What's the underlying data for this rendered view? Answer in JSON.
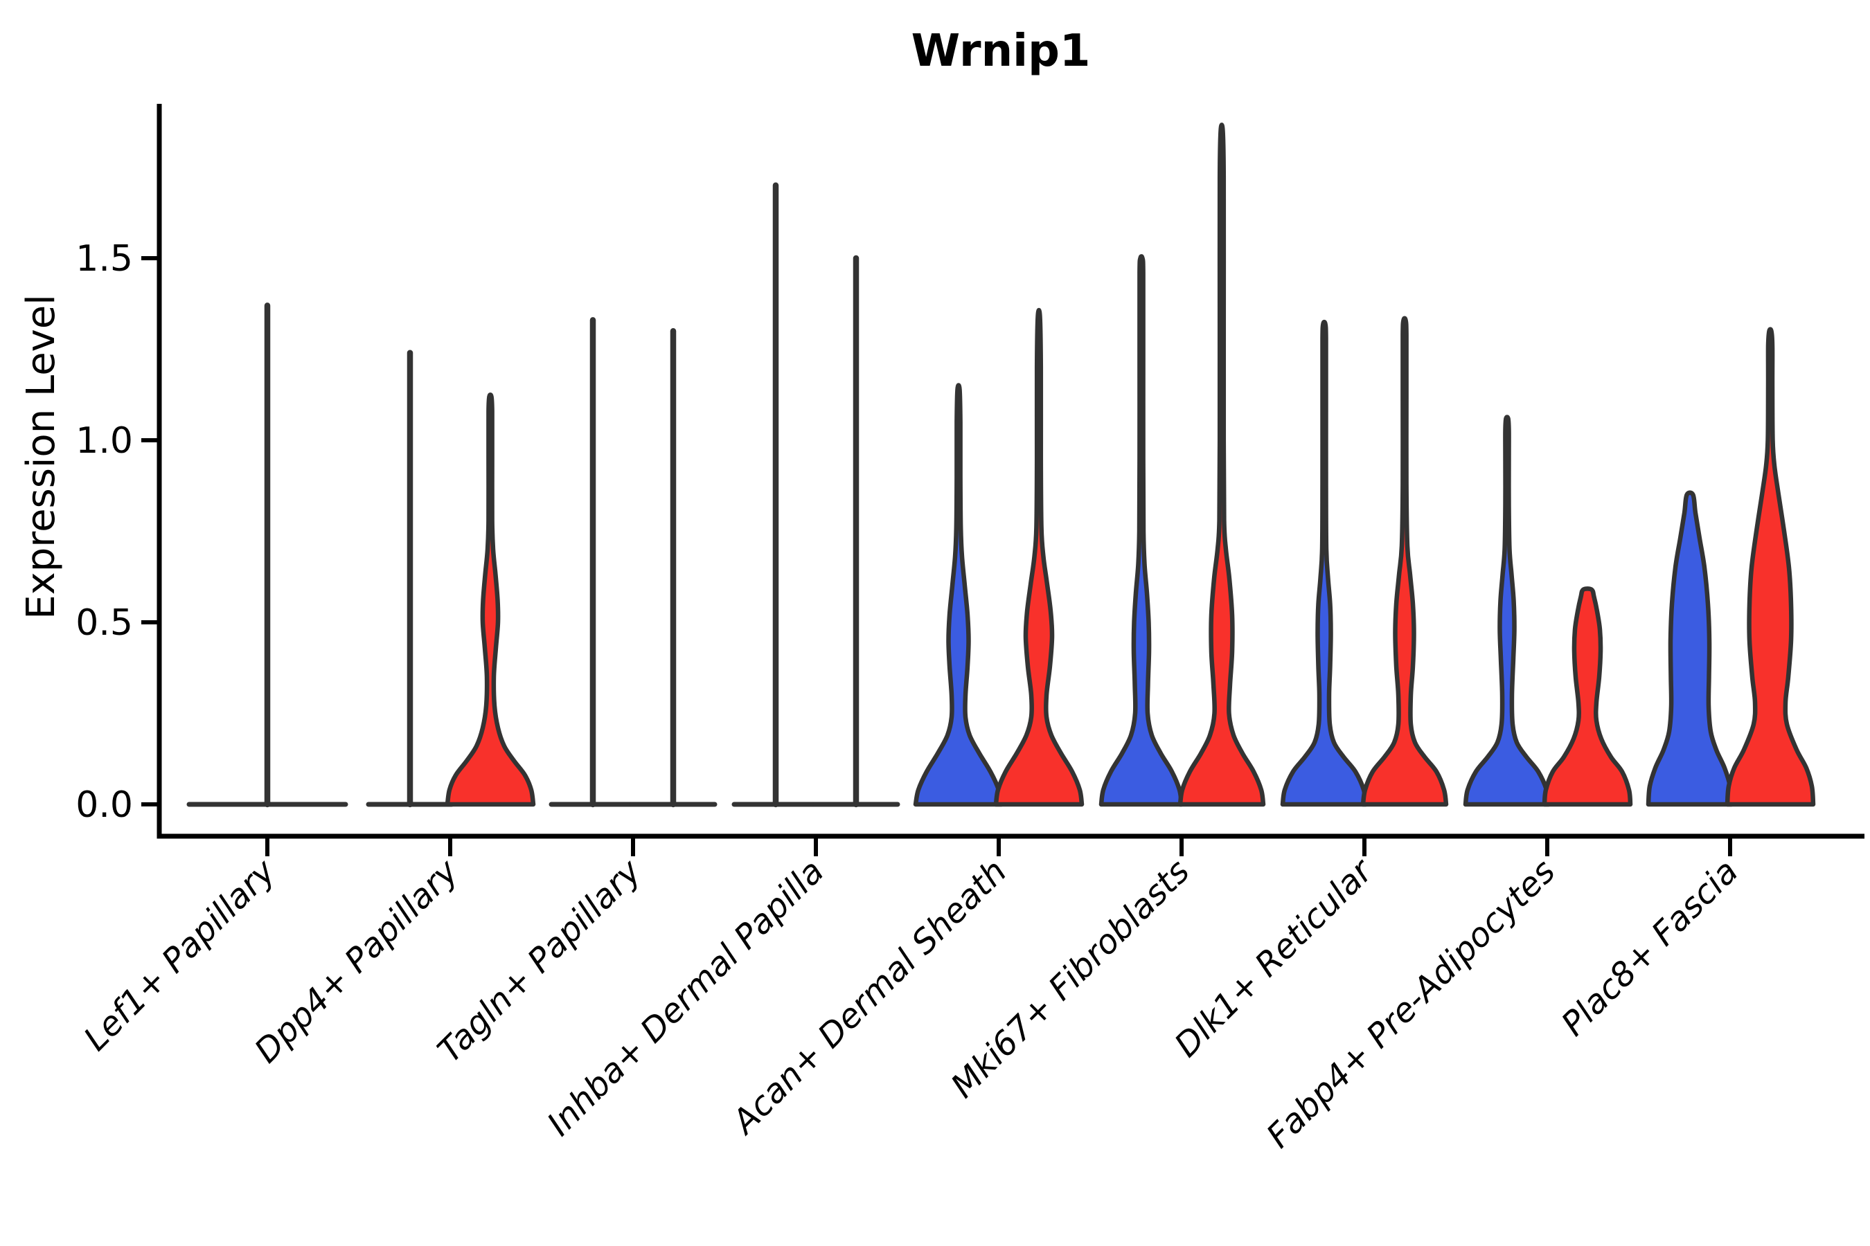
{
  "chart_data": {
    "type": "violin",
    "title": "Wrnip1",
    "ylabel": "Expression Level",
    "xlabel": "",
    "yticks": [
      0.0,
      0.5,
      1.0,
      1.5
    ],
    "ylim": [
      -0.09,
      1.93
    ],
    "grid": false,
    "legend_position": "none",
    "split_colors": {
      "blue": "#3B5CE1",
      "red": "#F8312B"
    },
    "outline_color": "#333333",
    "axis_color": "#000000",
    "categories": [
      "Lef1+ Papillary",
      "Dpp4+ Papillary",
      "Tagln+ Papillary",
      "Inhba+ Dermal Papilla",
      "Acan+ Dermal Sheath",
      "Mki67+ Fibroblasts",
      "Dlk1+ Reticular",
      "Fabp4+ Pre-Adipocytes",
      "Plac8+ Fascia"
    ],
    "groups": [
      {
        "category": "Lef1+ Papillary",
        "violins": [
          {
            "split": "single",
            "shape": "flat",
            "max": 1.37,
            "color": null,
            "base_halfwidth": 113
          }
        ]
      },
      {
        "category": "Dpp4+ Papillary",
        "violins": [
          {
            "split": "blue",
            "shape": "flat",
            "max": 1.24,
            "color": "#3B5CE1",
            "base_halfwidth": 60
          },
          {
            "split": "red",
            "shape": "body",
            "max": 1.12,
            "color": "#F8312B",
            "profile": [
              [
                0,
                62
              ],
              [
                0.04,
                59
              ],
              [
                0.08,
                50
              ],
              [
                0.12,
                34
              ],
              [
                0.16,
                20
              ],
              [
                0.21,
                11
              ],
              [
                0.27,
                6
              ],
              [
                0.35,
                5
              ],
              [
                0.43,
                8
              ],
              [
                0.5,
                11
              ],
              [
                0.56,
                10.5
              ],
              [
                0.63,
                7.5
              ],
              [
                0.7,
                4
              ],
              [
                0.78,
                2.6
              ],
              [
                0.95,
                2.6
              ],
              [
                1.08,
                2.6
              ],
              [
                1.12,
                1.5
              ]
            ]
          }
        ]
      },
      {
        "category": "Tagln+ Papillary",
        "violins": [
          {
            "split": "blue",
            "shape": "flat",
            "max": 1.33,
            "color": "#3B5CE1",
            "base_halfwidth": 60
          },
          {
            "split": "red",
            "shape": "flat",
            "max": 1.3,
            "color": "#F8312B",
            "base_halfwidth": 60
          }
        ]
      },
      {
        "category": "Inhba+ Dermal Papilla",
        "violins": [
          {
            "split": "blue",
            "shape": "flat",
            "max": 1.7,
            "color": "#3B5CE1",
            "base_halfwidth": 60
          },
          {
            "split": "red",
            "shape": "flat",
            "max": 1.5,
            "color": "#F8312B",
            "base_halfwidth": 60
          }
        ]
      },
      {
        "category": "Acan+ Dermal Sheath",
        "violins": [
          {
            "split": "blue",
            "shape": "body",
            "max": 1.14,
            "color": "#3B5CE1",
            "profile": [
              [
                0,
                62
              ],
              [
                0.04,
                58
              ],
              [
                0.09,
                46
              ],
              [
                0.14,
                30
              ],
              [
                0.19,
                16
              ],
              [
                0.24,
                10
              ],
              [
                0.3,
                10
              ],
              [
                0.38,
                13
              ],
              [
                0.45,
                14.5
              ],
              [
                0.52,
                13
              ],
              [
                0.6,
                9
              ],
              [
                0.68,
                5
              ],
              [
                0.76,
                3.2
              ],
              [
                0.9,
                2.6
              ],
              [
                1.05,
                2.6
              ],
              [
                1.14,
                1.5
              ]
            ]
          },
          {
            "split": "red",
            "shape": "body",
            "max": 1.34,
            "color": "#F8312B",
            "profile": [
              [
                0,
                62
              ],
              [
                0.04,
                59
              ],
              [
                0.09,
                48
              ],
              [
                0.14,
                32
              ],
              [
                0.19,
                18
              ],
              [
                0.24,
                11
              ],
              [
                0.3,
                11
              ],
              [
                0.38,
                16
              ],
              [
                0.46,
                19
              ],
              [
                0.53,
                17
              ],
              [
                0.61,
                11.5
              ],
              [
                0.68,
                6.5
              ],
              [
                0.76,
                3.6
              ],
              [
                0.95,
                2.8
              ],
              [
                1.2,
                2.8
              ],
              [
                1.34,
                1.5
              ]
            ]
          }
        ]
      },
      {
        "category": "Mki67+ Fibroblasts",
        "violins": [
          {
            "split": "blue",
            "shape": "body",
            "max": 1.5,
            "color": "#3B5CE1",
            "profile": [
              [
                0,
                58
              ],
              [
                0.04,
                55
              ],
              [
                0.09,
                44
              ],
              [
                0.14,
                28
              ],
              [
                0.19,
                15
              ],
              [
                0.25,
                9
              ],
              [
                0.33,
                9.5
              ],
              [
                0.42,
                11
              ],
              [
                0.5,
                10.5
              ],
              [
                0.58,
                8
              ],
              [
                0.66,
                4.5
              ],
              [
                0.75,
                3
              ],
              [
                0.95,
                2.6
              ],
              [
                1.25,
                2.6
              ],
              [
                1.46,
                2.6
              ],
              [
                1.5,
                1.5
              ]
            ]
          },
          {
            "split": "red",
            "shape": "body",
            "max": 1.85,
            "color": "#F8312B",
            "profile": [
              [
                0,
                60
              ],
              [
                0.04,
                57
              ],
              [
                0.09,
                46
              ],
              [
                0.14,
                30
              ],
              [
                0.19,
                17
              ],
              [
                0.25,
                10.5
              ],
              [
                0.33,
                12
              ],
              [
                0.42,
                15
              ],
              [
                0.52,
                15
              ],
              [
                0.62,
                11
              ],
              [
                0.7,
                6
              ],
              [
                0.78,
                3.4
              ],
              [
                1.0,
                2.8
              ],
              [
                1.35,
                2.8
              ],
              [
                1.72,
                2.8
              ],
              [
                1.85,
                1.5
              ]
            ]
          }
        ]
      },
      {
        "category": "Dlk1+ Reticular",
        "violins": [
          {
            "split": "blue",
            "shape": "body",
            "max": 1.32,
            "color": "#3B5CE1",
            "profile": [
              [
                0,
                60
              ],
              [
                0.04,
                57
              ],
              [
                0.09,
                45
              ],
              [
                0.13,
                28
              ],
              [
                0.17,
                14
              ],
              [
                0.22,
                8
              ],
              [
                0.3,
                7
              ],
              [
                0.38,
                8.5
              ],
              [
                0.47,
                9.5
              ],
              [
                0.55,
                8.5
              ],
              [
                0.62,
                5.5
              ],
              [
                0.7,
                3
              ],
              [
                0.88,
                2.5
              ],
              [
                1.12,
                2.5
              ],
              [
                1.28,
                2.5
              ],
              [
                1.32,
                1.5
              ]
            ]
          },
          {
            "split": "red",
            "shape": "body",
            "max": 1.33,
            "color": "#F8312B",
            "profile": [
              [
                0,
                60
              ],
              [
                0.04,
                57
              ],
              [
                0.09,
                46
              ],
              [
                0.13,
                29
              ],
              [
                0.17,
                15
              ],
              [
                0.22,
                9
              ],
              [
                0.3,
                9
              ],
              [
                0.38,
                12
              ],
              [
                0.47,
                13.5
              ],
              [
                0.55,
                12
              ],
              [
                0.63,
                8
              ],
              [
                0.71,
                4
              ],
              [
                0.88,
                2.6
              ],
              [
                1.12,
                2.6
              ],
              [
                1.29,
                2.6
              ],
              [
                1.33,
                1.5
              ]
            ]
          }
        ]
      },
      {
        "category": "Fabp4+ Pre-Adipocytes",
        "violins": [
          {
            "split": "blue",
            "shape": "body",
            "max": 1.06,
            "color": "#3B5CE1",
            "profile": [
              [
                0,
                60
              ],
              [
                0.04,
                57
              ],
              [
                0.09,
                45
              ],
              [
                0.13,
                28
              ],
              [
                0.17,
                14
              ],
              [
                0.22,
                8
              ],
              [
                0.3,
                7
              ],
              [
                0.4,
                9
              ],
              [
                0.48,
                10.5
              ],
              [
                0.56,
                9.5
              ],
              [
                0.63,
                6.5
              ],
              [
                0.7,
                3.5
              ],
              [
                0.82,
                2.5
              ],
              [
                0.95,
                2.5
              ],
              [
                1.03,
                2.5
              ],
              [
                1.06,
                1.5
              ]
            ]
          },
          {
            "split": "red",
            "shape": "body",
            "max": 0.59,
            "color": "#F8312B",
            "profile": [
              [
                0,
                62
              ],
              [
                0.04,
                60
              ],
              [
                0.09,
                50
              ],
              [
                0.13,
                34
              ],
              [
                0.18,
                20
              ],
              [
                0.23,
                13
              ],
              [
                0.28,
                13
              ],
              [
                0.35,
                17
              ],
              [
                0.42,
                19
              ],
              [
                0.48,
                18
              ],
              [
                0.53,
                14
              ],
              [
                0.57,
                9.5
              ],
              [
                0.59,
                6
              ]
            ]
          }
        ]
      },
      {
        "category": "Plac8+ Fascia",
        "violins": [
          {
            "split": "blue",
            "shape": "body",
            "max": 0.85,
            "color": "#3B5CE1",
            "profile": [
              [
                0,
                60
              ],
              [
                0.05,
                58
              ],
              [
                0.1,
                50
              ],
              [
                0.15,
                38
              ],
              [
                0.2,
                30
              ],
              [
                0.27,
                27
              ],
              [
                0.35,
                27.5
              ],
              [
                0.45,
                28
              ],
              [
                0.55,
                26
              ],
              [
                0.65,
                21
              ],
              [
                0.73,
                14
              ],
              [
                0.8,
                8
              ],
              [
                0.85,
                4.5
              ]
            ]
          },
          {
            "split": "red",
            "shape": "body",
            "max": 1.3,
            "color": "#F8312B",
            "profile": [
              [
                0,
                62
              ],
              [
                0.05,
                60
              ],
              [
                0.1,
                52
              ],
              [
                0.15,
                38
              ],
              [
                0.22,
                24
              ],
              [
                0.28,
                22
              ],
              [
                0.35,
                26
              ],
              [
                0.45,
                30
              ],
              [
                0.55,
                30
              ],
              [
                0.65,
                27
              ],
              [
                0.75,
                20
              ],
              [
                0.85,
                12
              ],
              [
                0.93,
                6
              ],
              [
                1.0,
                3.5
              ],
              [
                1.15,
                3
              ],
              [
                1.26,
                3
              ],
              [
                1.3,
                1.5
              ]
            ]
          }
        ]
      }
    ]
  }
}
